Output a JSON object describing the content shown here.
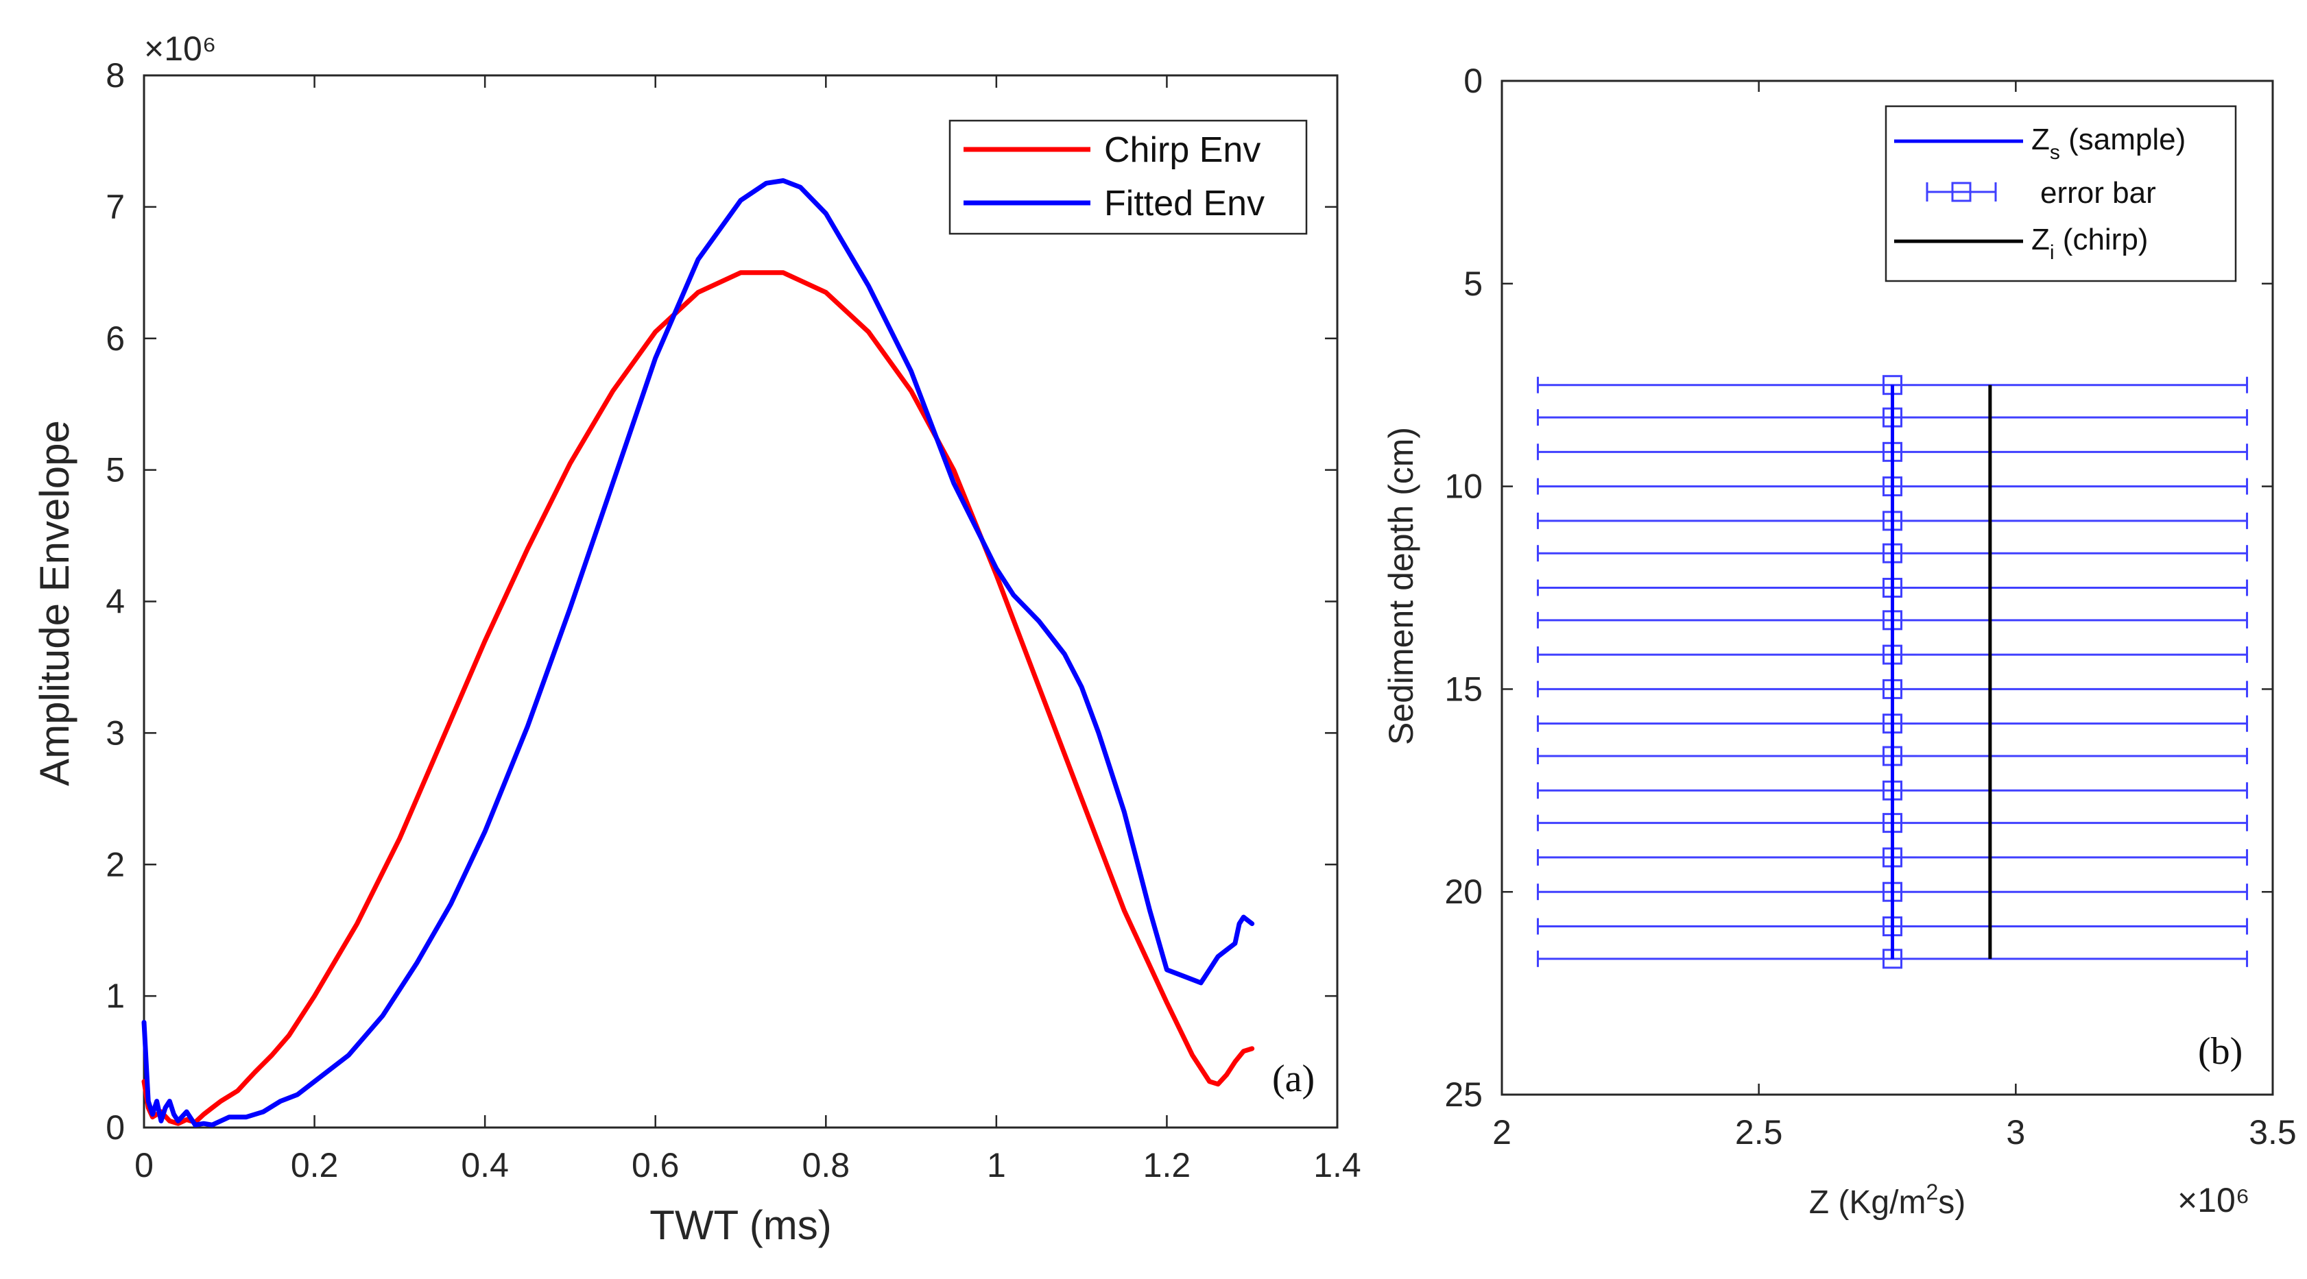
{
  "chart_data": [
    {
      "type": "line",
      "panel_label": "(a)",
      "xlabel": "TWT (ms)",
      "ylabel": "Amplitude Envelope",
      "y_exponent": "×10⁶",
      "xlim": [
        0,
        1.4
      ],
      "ylim": [
        0,
        8
      ],
      "xticks": [
        0,
        0.2,
        0.4,
        0.6,
        0.8,
        1,
        1.2,
        1.4
      ],
      "xtick_labels": [
        "0",
        "0.2",
        "0.4",
        "0.6",
        "0.8",
        "1",
        "1.2",
        "1.4"
      ],
      "yticks": [
        0,
        1,
        2,
        3,
        4,
        5,
        6,
        7,
        8
      ],
      "ytick_labels": [
        "0",
        "1",
        "2",
        "3",
        "4",
        "5",
        "6",
        "7",
        "8"
      ],
      "legend_position": "top-right",
      "series": [
        {
          "name": "Chirp Env",
          "color": "#ff0000",
          "x": [
            0,
            0.005,
            0.01,
            0.02,
            0.03,
            0.04,
            0.05,
            0.06,
            0.07,
            0.08,
            0.09,
            0.1,
            0.11,
            0.12,
            0.13,
            0.15,
            0.17,
            0.2,
            0.25,
            0.3,
            0.35,
            0.4,
            0.45,
            0.5,
            0.55,
            0.6,
            0.65,
            0.7,
            0.75,
            0.8,
            0.85,
            0.9,
            0.95,
            1.0,
            1.05,
            1.1,
            1.15,
            1.2,
            1.23,
            1.25,
            1.26,
            1.27,
            1.28,
            1.29,
            1.3
          ],
          "y": [
            0.35,
            0.15,
            0.08,
            0.12,
            0.05,
            0.03,
            0.06,
            0.04,
            0.1,
            0.15,
            0.2,
            0.24,
            0.28,
            0.35,
            0.42,
            0.55,
            0.7,
            1.0,
            1.55,
            2.2,
            2.95,
            3.7,
            4.4,
            5.05,
            5.6,
            6.05,
            6.35,
            6.5,
            6.5,
            6.35,
            6.05,
            5.6,
            5.0,
            4.2,
            3.35,
            2.5,
            1.65,
            0.95,
            0.55,
            0.35,
            0.33,
            0.4,
            0.5,
            0.58,
            0.6
          ]
        },
        {
          "name": "Fitted Env",
          "color": "#0000ff",
          "x": [
            0,
            0.005,
            0.01,
            0.015,
            0.02,
            0.025,
            0.03,
            0.035,
            0.04,
            0.05,
            0.06,
            0.07,
            0.08,
            0.09,
            0.1,
            0.12,
            0.14,
            0.16,
            0.18,
            0.2,
            0.24,
            0.28,
            0.32,
            0.36,
            0.4,
            0.45,
            0.5,
            0.55,
            0.6,
            0.65,
            0.7,
            0.73,
            0.75,
            0.77,
            0.8,
            0.85,
            0.9,
            0.95,
            1.0,
            1.02,
            1.05,
            1.08,
            1.1,
            1.12,
            1.15,
            1.18,
            1.2,
            1.22,
            1.24,
            1.25,
            1.26,
            1.27,
            1.28,
            1.285,
            1.29,
            1.3
          ],
          "y": [
            0.8,
            0.2,
            0.1,
            0.2,
            0.05,
            0.15,
            0.2,
            0.1,
            0.05,
            0.12,
            0.02,
            0.03,
            0.02,
            0.05,
            0.08,
            0.08,
            0.12,
            0.2,
            0.25,
            0.35,
            0.55,
            0.85,
            1.25,
            1.7,
            2.25,
            3.05,
            3.95,
            4.9,
            5.85,
            6.6,
            7.05,
            7.18,
            7.2,
            7.15,
            6.95,
            6.4,
            5.75,
            4.9,
            4.25,
            4.05,
            3.85,
            3.6,
            3.35,
            3.0,
            2.4,
            1.65,
            1.2,
            1.15,
            1.1,
            1.2,
            1.3,
            1.35,
            1.4,
            1.55,
            1.6,
            1.55
          ]
        }
      ]
    },
    {
      "type": "errorbar",
      "panel_label": "(b)",
      "xlabel_prefix": "Z (Kg/m",
      "xlabel_sup": "2",
      "xlabel_suffix": "s)",
      "ylabel": "Sediment depth (cm)",
      "x_exponent": "×10⁶",
      "xlim": [
        2,
        3.5
      ],
      "ylim": [
        0,
        25
      ],
      "y_reversed": true,
      "xticks": [
        2,
        2.5,
        3,
        3.5
      ],
      "xtick_labels": [
        "2",
        "2.5",
        "3",
        "3.5"
      ],
      "yticks": [
        0,
        5,
        10,
        15,
        20,
        25
      ],
      "ytick_labels": [
        "0",
        "5",
        "10",
        "15",
        "20",
        "25"
      ],
      "legend_position": "top-right",
      "legend": {
        "zs_main": "Z",
        "zs_sub": "s",
        "zs_suffix": " (sample)",
        "errorbar": "error bar",
        "zi_main": "Z",
        "zi_sub": "i",
        "zi_suffix": " (chirp)"
      },
      "sample": {
        "color": "#0000ff",
        "x": 2.76,
        "depths": [
          7.5,
          8.3,
          9.15,
          10.0,
          10.85,
          11.65,
          12.5,
          13.3,
          14.15,
          15.0,
          15.85,
          16.65,
          17.5,
          18.3,
          19.15,
          20.0,
          20.85,
          21.65
        ],
        "err_low": 2.07,
        "err_high": 3.45
      },
      "chirp": {
        "color": "#000000",
        "x": 2.95,
        "depth_range": [
          7.5,
          21.65
        ]
      }
    }
  ]
}
